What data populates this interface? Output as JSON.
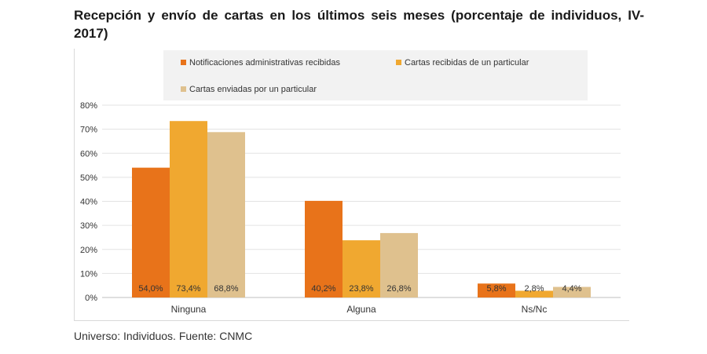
{
  "title": "Recepción y envío de cartas en los últimos seis meses (porcentaje de individuos, IV-2017)",
  "footer": "Universo: Individuos. Fuente: CNMC",
  "chart_data": {
    "type": "bar",
    "categories": [
      "Ninguna",
      "Alguna",
      "Ns/Nc"
    ],
    "series": [
      {
        "name": "Notificaciones administrativas recibidas",
        "color": "#E8731A",
        "values": [
          54.0,
          40.2,
          5.8
        ],
        "labels": [
          "54,0%",
          "40,2%",
          "5,8%"
        ]
      },
      {
        "name": "Cartas recibidas de un particular",
        "color": "#F0A830",
        "values": [
          73.4,
          23.8,
          2.8
        ],
        "labels": [
          "73,4%",
          "23,8%",
          "2,8%"
        ]
      },
      {
        "name": "Cartas enviadas por un particular",
        "color": "#DFC18E",
        "values": [
          68.8,
          26.8,
          4.4
        ],
        "labels": [
          "68,8%",
          "26,8%",
          "4,4%"
        ]
      }
    ],
    "yticks": [
      "0%",
      "10%",
      "20%",
      "30%",
      "40%",
      "50%",
      "60%",
      "70%",
      "80%"
    ],
    "ylim": [
      0,
      80
    ],
    "grid": true,
    "legend_position": "top"
  }
}
